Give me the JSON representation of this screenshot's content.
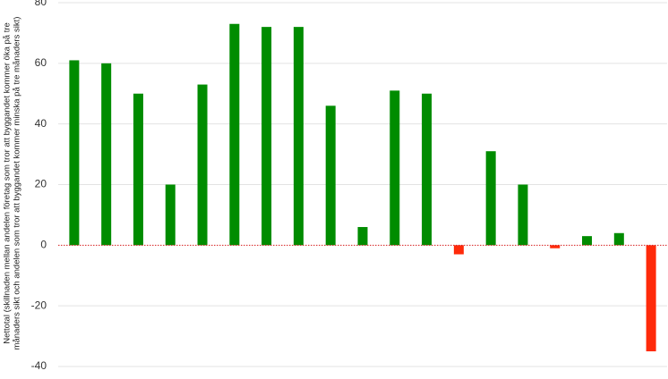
{
  "chart_data": {
    "type": "bar",
    "y_label": [
      "Nettotal (skillnaden mellan andelen företag som tror att byggandet kommer öka på tre",
      "månaders sikt och andelen som tror att byggandet kommer minska på tre månaders sikt)"
    ],
    "categories": [
      null,
      null,
      null,
      null,
      null,
      null,
      null,
      null,
      null,
      null,
      null,
      null,
      null,
      null,
      null,
      null,
      null,
      null,
      null
    ],
    "values": [
      61,
      60,
      50,
      20,
      53,
      73,
      72,
      72,
      46,
      6,
      51,
      50,
      -3,
      31,
      20,
      -1,
      3,
      4,
      -35
    ],
    "color": "#008c00",
    "negative_color": "#ff2a0a",
    "zero_line_color": "#d62020",
    "ylim": [
      -40,
      80
    ],
    "yticks": [
      -40,
      -20,
      0,
      20,
      40,
      60,
      80
    ],
    "grid": true
  }
}
